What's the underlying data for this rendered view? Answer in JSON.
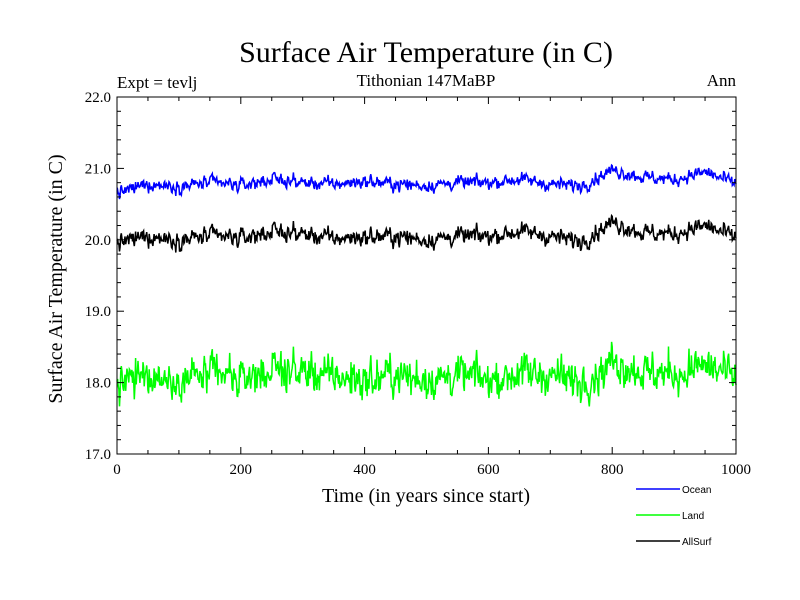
{
  "chart_data": {
    "type": "line",
    "title": "Surface Air Temperature (in C)",
    "subtitle_left": "Expt = tevlj",
    "subtitle_center": "Tithonian 147MaBP",
    "subtitle_right": "Ann",
    "xlabel": "Time (in years since start)",
    "ylabel": "Surface Air Temperature (in C)",
    "xlim": [
      0,
      1000
    ],
    "ylim": [
      17.0,
      22.0
    ],
    "xticks": [
      0,
      200,
      400,
      600,
      800,
      1000
    ],
    "xtick_labels": [
      "0",
      "200",
      "400",
      "600",
      "800",
      "1000"
    ],
    "yticks": [
      17.0,
      18.0,
      19.0,
      20.0,
      21.0,
      22.0
    ],
    "ytick_labels": [
      "17.0",
      "18.0",
      "19.0",
      "20.0",
      "21.0",
      "22.0"
    ],
    "grid": false,
    "legend_position": "bottom-right, outside plot",
    "x": [
      0,
      50,
      100,
      150,
      200,
      250,
      300,
      350,
      400,
      450,
      500,
      550,
      600,
      650,
      700,
      750,
      800,
      850,
      900,
      950,
      1000
    ],
    "series": [
      {
        "name": "Ocean",
        "color": "#0000ff",
        "values": [
          20.65,
          20.78,
          20.75,
          20.8,
          20.76,
          20.85,
          20.8,
          20.78,
          20.82,
          20.78,
          20.76,
          20.8,
          20.8,
          20.85,
          20.78,
          20.76,
          20.98,
          20.88,
          20.84,
          20.95,
          20.78
        ]
      },
      {
        "name": "Land",
        "color": "#00ff00",
        "values": [
          17.95,
          18.1,
          18.05,
          18.1,
          18.05,
          18.2,
          18.15,
          18.08,
          18.05,
          18.1,
          18.05,
          18.1,
          18.05,
          18.15,
          18.1,
          18.0,
          18.3,
          18.15,
          18.12,
          18.25,
          18.05
        ]
      },
      {
        "name": "AllSurf",
        "color": "#000000",
        "values": [
          19.95,
          20.05,
          20.0,
          20.05,
          20.02,
          20.12,
          20.08,
          20.02,
          20.04,
          20.05,
          20.0,
          20.05,
          20.05,
          20.12,
          20.05,
          19.98,
          20.25,
          20.1,
          20.08,
          20.2,
          20.02
        ]
      }
    ]
  }
}
